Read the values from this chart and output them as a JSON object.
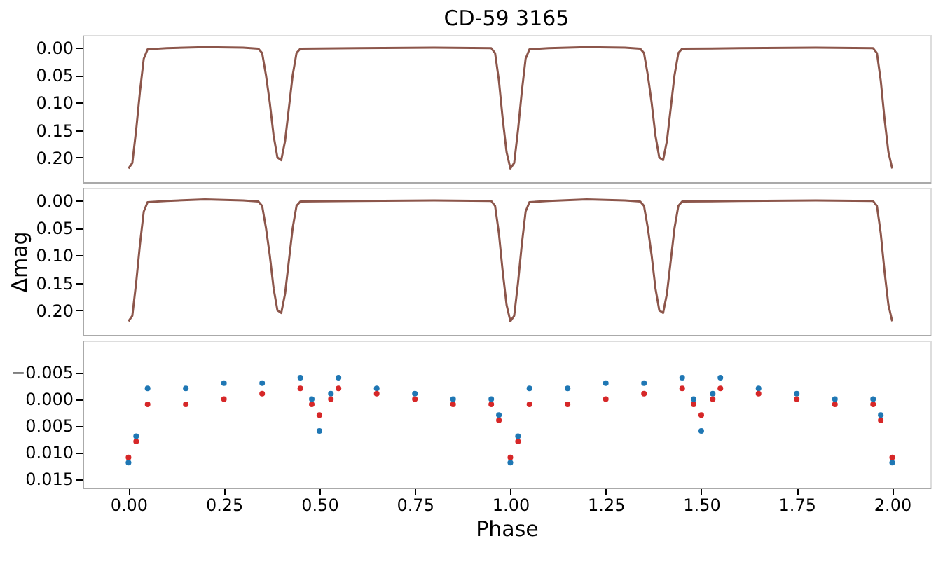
{
  "chart_data": [
    {
      "type": "line",
      "title": "CD-59 3165",
      "tick_labels": "y",
      "x": [
        0,
        0.01,
        0.02,
        0.03,
        0.04,
        0.05,
        0.1,
        0.2,
        0.3,
        0.34,
        0.35,
        0.36,
        0.37,
        0.38,
        0.39,
        0.4,
        0.41,
        0.42,
        0.43,
        0.44,
        0.45,
        0.6,
        0.8,
        0.95,
        0.96,
        0.97,
        0.98,
        0.99,
        1.0,
        1.01,
        1.02,
        1.03,
        1.04,
        1.05,
        1.1,
        1.2,
        1.3,
        1.34,
        1.35,
        1.36,
        1.37,
        1.38,
        1.39,
        1.4,
        1.41,
        1.42,
        1.43,
        1.44,
        1.45,
        1.6,
        1.8,
        1.95,
        1.96,
        1.97,
        1.98,
        1.99,
        2.0
      ],
      "series": [
        {
          "color": "#8c564b",
          "values": [
            0.22,
            0.21,
            0.15,
            0.08,
            0.02,
            0.003,
            0.001,
            -0.001,
            0,
            0.002,
            0.01,
            0.05,
            0.1,
            0.16,
            0.2,
            0.205,
            0.17,
            0.11,
            0.05,
            0.01,
            0.002,
            0.001,
            0,
            0.001,
            0.01,
            0.06,
            0.13,
            0.19,
            0.22,
            0.21,
            0.15,
            0.08,
            0.02,
            0.003,
            0.001,
            -0.001,
            0,
            0.002,
            0.01,
            0.05,
            0.1,
            0.16,
            0.2,
            0.205,
            0.17,
            0.11,
            0.05,
            0.01,
            0.002,
            0.001,
            0,
            0.001,
            0.01,
            0.06,
            0.13,
            0.19,
            0.22
          ]
        }
      ],
      "xlim": [
        -0.12,
        2.1
      ],
      "ylim": [
        0.245,
        -0.023
      ],
      "yticks": [
        {
          "value": 0,
          "label": "0.00"
        },
        {
          "value": 0.05,
          "label": "0.05"
        },
        {
          "value": 0.1,
          "label": "0.10"
        },
        {
          "value": 0.15,
          "label": "0.15"
        },
        {
          "value": 0.2,
          "label": "0.20"
        }
      ],
      "grid": false
    },
    {
      "type": "line",
      "ylabel": "Δmag",
      "tick_labels": "y",
      "x": [
        0,
        0.01,
        0.02,
        0.03,
        0.04,
        0.05,
        0.1,
        0.2,
        0.3,
        0.34,
        0.35,
        0.36,
        0.37,
        0.38,
        0.39,
        0.4,
        0.41,
        0.42,
        0.43,
        0.44,
        0.45,
        0.6,
        0.8,
        0.95,
        0.96,
        0.97,
        0.98,
        0.99,
        1.0,
        1.01,
        1.02,
        1.03,
        1.04,
        1.05,
        1.1,
        1.2,
        1.3,
        1.34,
        1.35,
        1.36,
        1.37,
        1.38,
        1.39,
        1.4,
        1.41,
        1.42,
        1.43,
        1.44,
        1.45,
        1.6,
        1.8,
        1.95,
        1.96,
        1.97,
        1.98,
        1.99,
        2.0
      ],
      "series": [
        {
          "color": "#8c564b",
          "values": [
            0.22,
            0.21,
            0.15,
            0.08,
            0.02,
            0.003,
            0.001,
            -0.002,
            0,
            0.002,
            0.01,
            0.05,
            0.1,
            0.16,
            0.2,
            0.205,
            0.17,
            0.11,
            0.05,
            0.01,
            0.002,
            0.001,
            0,
            0.001,
            0.01,
            0.06,
            0.13,
            0.19,
            0.22,
            0.21,
            0.15,
            0.08,
            0.02,
            0.003,
            0.001,
            -0.002,
            0,
            0.002,
            0.01,
            0.05,
            0.1,
            0.16,
            0.2,
            0.205,
            0.17,
            0.11,
            0.05,
            0.01,
            0.002,
            0.001,
            0,
            0.001,
            0.01,
            0.06,
            0.13,
            0.19,
            0.22
          ]
        }
      ],
      "xlim": [
        -0.12,
        2.1
      ],
      "ylim": [
        0.245,
        -0.023
      ],
      "yticks": [
        {
          "value": 0,
          "label": "0.00"
        },
        {
          "value": 0.05,
          "label": "0.05"
        },
        {
          "value": 0.1,
          "label": "0.10"
        },
        {
          "value": 0.15,
          "label": "0.15"
        },
        {
          "value": 0.2,
          "label": "0.20"
        }
      ],
      "grid": false
    },
    {
      "type": "scatter",
      "xlabel": "Phase",
      "marker": "circle",
      "x": [
        0,
        0.02,
        0.05,
        0.15,
        0.25,
        0.35,
        0.45,
        0.48,
        0.5,
        0.53,
        0.55,
        0.65,
        0.75,
        0.85,
        0.95,
        0.97,
        1.0,
        1.02,
        1.05,
        1.15,
        1.25,
        1.35,
        1.45,
        1.48,
        1.5,
        1.53,
        1.55,
        1.65,
        1.75,
        1.85,
        1.95,
        1.97,
        2.0
      ],
      "series": [
        {
          "color": "#1f77b4",
          "values": [
            0.012,
            0.007,
            -0.002,
            -0.002,
            -0.003,
            -0.003,
            -0.004,
            0,
            0.006,
            -0.001,
            -0.004,
            -0.002,
            -0.001,
            0,
            0,
            0.003,
            0.012,
            0.007,
            -0.002,
            -0.002,
            -0.003,
            -0.003,
            -0.004,
            0,
            0.006,
            -0.001,
            -0.004,
            -0.002,
            -0.001,
            0,
            0,
            0.003,
            0.012
          ]
        },
        {
          "color": "#d62728",
          "values": [
            0.011,
            0.008,
            0.001,
            0.001,
            0,
            -0.001,
            -0.002,
            0.001,
            0.003,
            0,
            -0.002,
            -0.001,
            0,
            0.001,
            0.001,
            0.004,
            0.011,
            0.008,
            0.001,
            0.001,
            0,
            -0.001,
            -0.002,
            0.001,
            0.003,
            0,
            -0.002,
            -0.001,
            0,
            0.001,
            0.001,
            0.004,
            0.011
          ]
        }
      ],
      "xlim": [
        -0.12,
        2.1
      ],
      "ylim": [
        0.0167,
        -0.011
      ],
      "xticks": [
        {
          "value": 0,
          "label": "0.00"
        },
        {
          "value": 0.25,
          "label": "0.25"
        },
        {
          "value": 0.5,
          "label": "0.50"
        },
        {
          "value": 0.75,
          "label": "0.75"
        },
        {
          "value": 1,
          "label": "1.00"
        },
        {
          "value": 1.25,
          "label": "1.25"
        },
        {
          "value": 1.5,
          "label": "1.50"
        },
        {
          "value": 1.75,
          "label": "1.75"
        },
        {
          "value": 2,
          "label": "2.00"
        }
      ],
      "yticks": [
        {
          "value": -0.005,
          "label": "−0.005"
        },
        {
          "value": 0,
          "label": "0.000"
        },
        {
          "value": 0.005,
          "label": "0.005"
        },
        {
          "value": 0.01,
          "label": "0.010"
        },
        {
          "value": 0.015,
          "label": "0.015"
        }
      ],
      "grid": false
    }
  ]
}
